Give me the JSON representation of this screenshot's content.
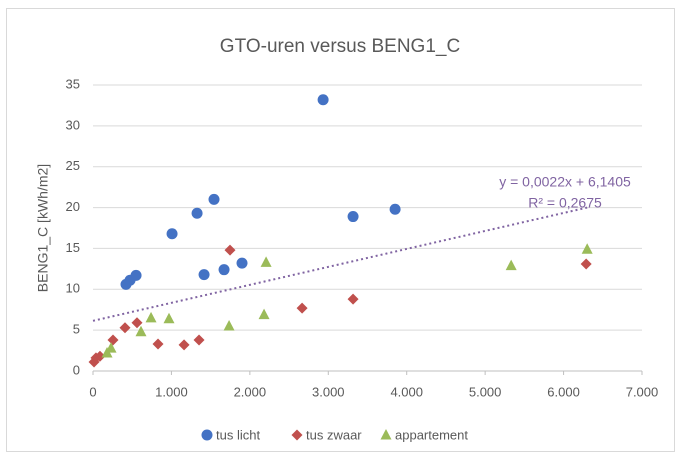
{
  "chart_data": {
    "type": "scatter",
    "title": "GTO-uren versus BENG1_C",
    "y_label": "BENG1_C [kWh/m2]",
    "xlim": [
      0,
      7000
    ],
    "xticks": [
      0,
      {
        "value": 1000,
        "label": "1.000"
      },
      {
        "value": 2000,
        "label": "2.000"
      },
      {
        "value": 3000,
        "label": "3.000"
      },
      {
        "value": 4000,
        "label": "4.000"
      },
      {
        "value": 5000,
        "label": "5.000"
      },
      {
        "value": 6000,
        "label": "6.000"
      },
      {
        "value": 7000,
        "label": "7.000"
      }
    ],
    "ylim": [
      0,
      35
    ],
    "yticks": [
      0,
      5,
      10,
      15,
      20,
      25,
      30,
      35
    ],
    "grid": true,
    "legend": "bottom",
    "series": [
      {
        "name": "tus licht",
        "color": "#4472c4",
        "marker": "circle",
        "x": [
          421,
          472,
          549,
          1008,
          1327,
          1416,
          1543,
          1671,
          1900,
          2934,
          3316,
          3852
        ],
        "values": [
          10.6,
          11.1,
          11.7,
          16.8,
          19.3,
          11.8,
          21.0,
          12.4,
          13.2,
          33.2,
          18.9,
          19.8
        ]
      },
      {
        "name": "tus zwaar",
        "color": "#c0504d",
        "marker": "diamond",
        "x": [
          13,
          38,
          89,
          255,
          408,
          561,
          829,
          1161,
          1352,
          1747,
          2666,
          3316,
          6288
        ],
        "values": [
          1.1,
          1.6,
          1.8,
          3.8,
          5.3,
          5.9,
          3.3,
          3.2,
          3.8,
          14.8,
          7.7,
          8.8,
          13.1
        ]
      },
      {
        "name": "appartement",
        "color": "#9bbb59",
        "marker": "triangle",
        "x": [
          179,
          230,
          612,
          740,
          969,
          1735,
          2181,
          2207,
          5332,
          6301
        ],
        "values": [
          2.2,
          2.8,
          4.8,
          6.5,
          6.4,
          5.5,
          6.9,
          13.3,
          12.9,
          14.9
        ]
      }
    ],
    "trendline": {
      "slope": 0.0022,
      "intercept": 6.1405,
      "color": "#8064a2",
      "equation": "y = 0,0022x + 6,1405",
      "r2": "R² = 0,2675"
    }
  }
}
